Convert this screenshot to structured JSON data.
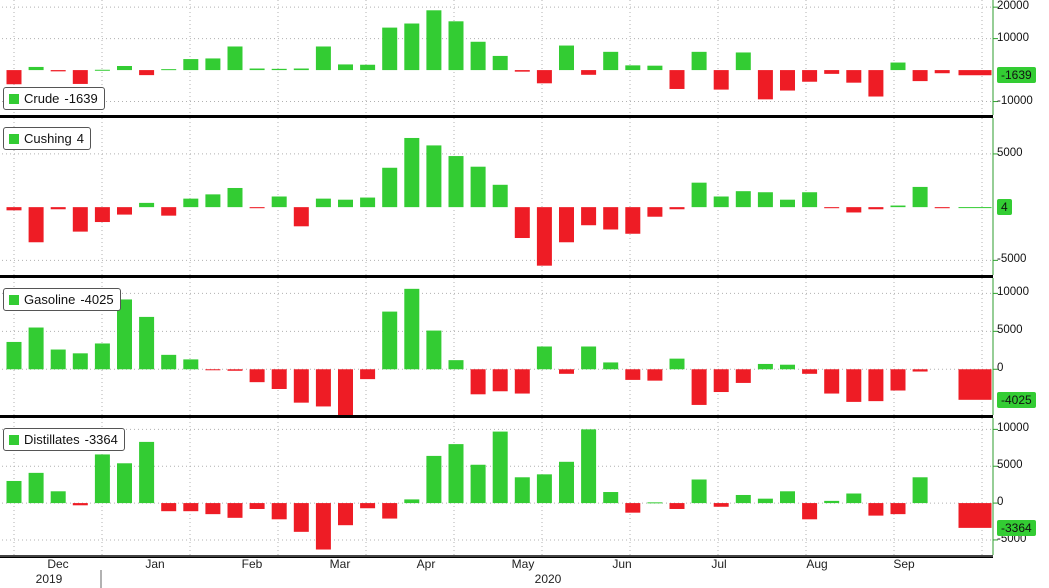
{
  "chart_data": [
    {
      "type": "bar",
      "legend": {
        "label": "Crude",
        "value": "-1639"
      },
      "yticks": [
        20000,
        10000,
        -10000
      ],
      "ylim": [
        -13000,
        21000
      ],
      "last_value_label": "-1639",
      "values": [
        -4500,
        1000,
        -400,
        -4400,
        100,
        1300,
        -1600,
        300,
        3500,
        3700,
        7500,
        500,
        400,
        500,
        7500,
        1800,
        1700,
        13500,
        14800,
        19000,
        15500,
        9000,
        4500,
        -500,
        -4200,
        7800,
        -1500,
        5800,
        1500,
        1400,
        -6000,
        5800,
        -6200,
        5600,
        -9300,
        -6500,
        -3700,
        -1200,
        -4000,
        -8400,
        2400,
        -3500,
        -1000,
        -1639
      ]
    },
    {
      "type": "bar",
      "legend": {
        "label": "Cushing",
        "value": "4"
      },
      "yticks": [
        5000,
        -5000
      ],
      "ylim": [
        -6000,
        8000
      ],
      "last_value_label": "4",
      "values": [
        -300,
        -3300,
        -200,
        -2300,
        -1400,
        -700,
        400,
        -800,
        800,
        1200,
        1800,
        -100,
        1000,
        -1800,
        800,
        700,
        900,
        3700,
        6500,
        5800,
        4800,
        3800,
        2100,
        -2900,
        -5500,
        -3300,
        -1700,
        -2100,
        -2500,
        -900,
        -200,
        2300,
        1000,
        1500,
        1400,
        700,
        1400,
        -100,
        -500,
        -200,
        150,
        1900,
        -100,
        4
      ]
    },
    {
      "type": "bar",
      "legend": {
        "label": "Gasoline",
        "value": "-4025"
      },
      "yticks": [
        10000,
        5000,
        0
      ],
      "ylim": [
        -5500,
        11500
      ],
      "last_value_label": "-4025",
      "values": [
        3600,
        5500,
        2600,
        2100,
        3400,
        9200,
        6900,
        1900,
        1300,
        -100,
        -200,
        -1700,
        -2600,
        -4400,
        -4900,
        -6100,
        -1300,
        7600,
        10600,
        5100,
        1200,
        -3300,
        -2900,
        -3200,
        3000,
        -600,
        3000,
        900,
        -1400,
        -1500,
        1400,
        -4700,
        -3000,
        -1800,
        700,
        600,
        -600,
        -3200,
        -4300,
        -4200,
        -2800,
        -300,
        -4025
      ]
    },
    {
      "type": "bar",
      "legend": {
        "label": "Distillates",
        "value": "-3364"
      },
      "yticks": [
        10000,
        5000,
        0,
        -5000
      ],
      "ylim": [
        -6500,
        11000
      ],
      "last_value_label": "-3364",
      "values": [
        3000,
        4100,
        1600,
        -300,
        6600,
        5400,
        8300,
        -1100,
        -1100,
        -1500,
        -2000,
        -800,
        -2200,
        -3900,
        -6300,
        -3000,
        -700,
        -2100,
        500,
        6400,
        8000,
        5200,
        9700,
        3500,
        3900,
        5600,
        10000,
        1500,
        -1300,
        100,
        -800,
        3200,
        -500,
        1100,
        600,
        1600,
        -2200,
        300,
        1300,
        -1700,
        -1500,
        3500,
        -3364
      ]
    }
  ],
  "x_axis": {
    "months": [
      "Dec",
      "Jan",
      "Feb",
      "Mar",
      "Apr",
      "May",
      "Jun",
      "Jul",
      "Aug",
      "Sep"
    ],
    "years": [
      "2019",
      "2020"
    ]
  },
  "colors": {
    "positive": "#33cc33",
    "negative": "#ee1c25",
    "separator": "#000000",
    "grid": "#b0b0b0",
    "axis": "#2e9e2e"
  }
}
